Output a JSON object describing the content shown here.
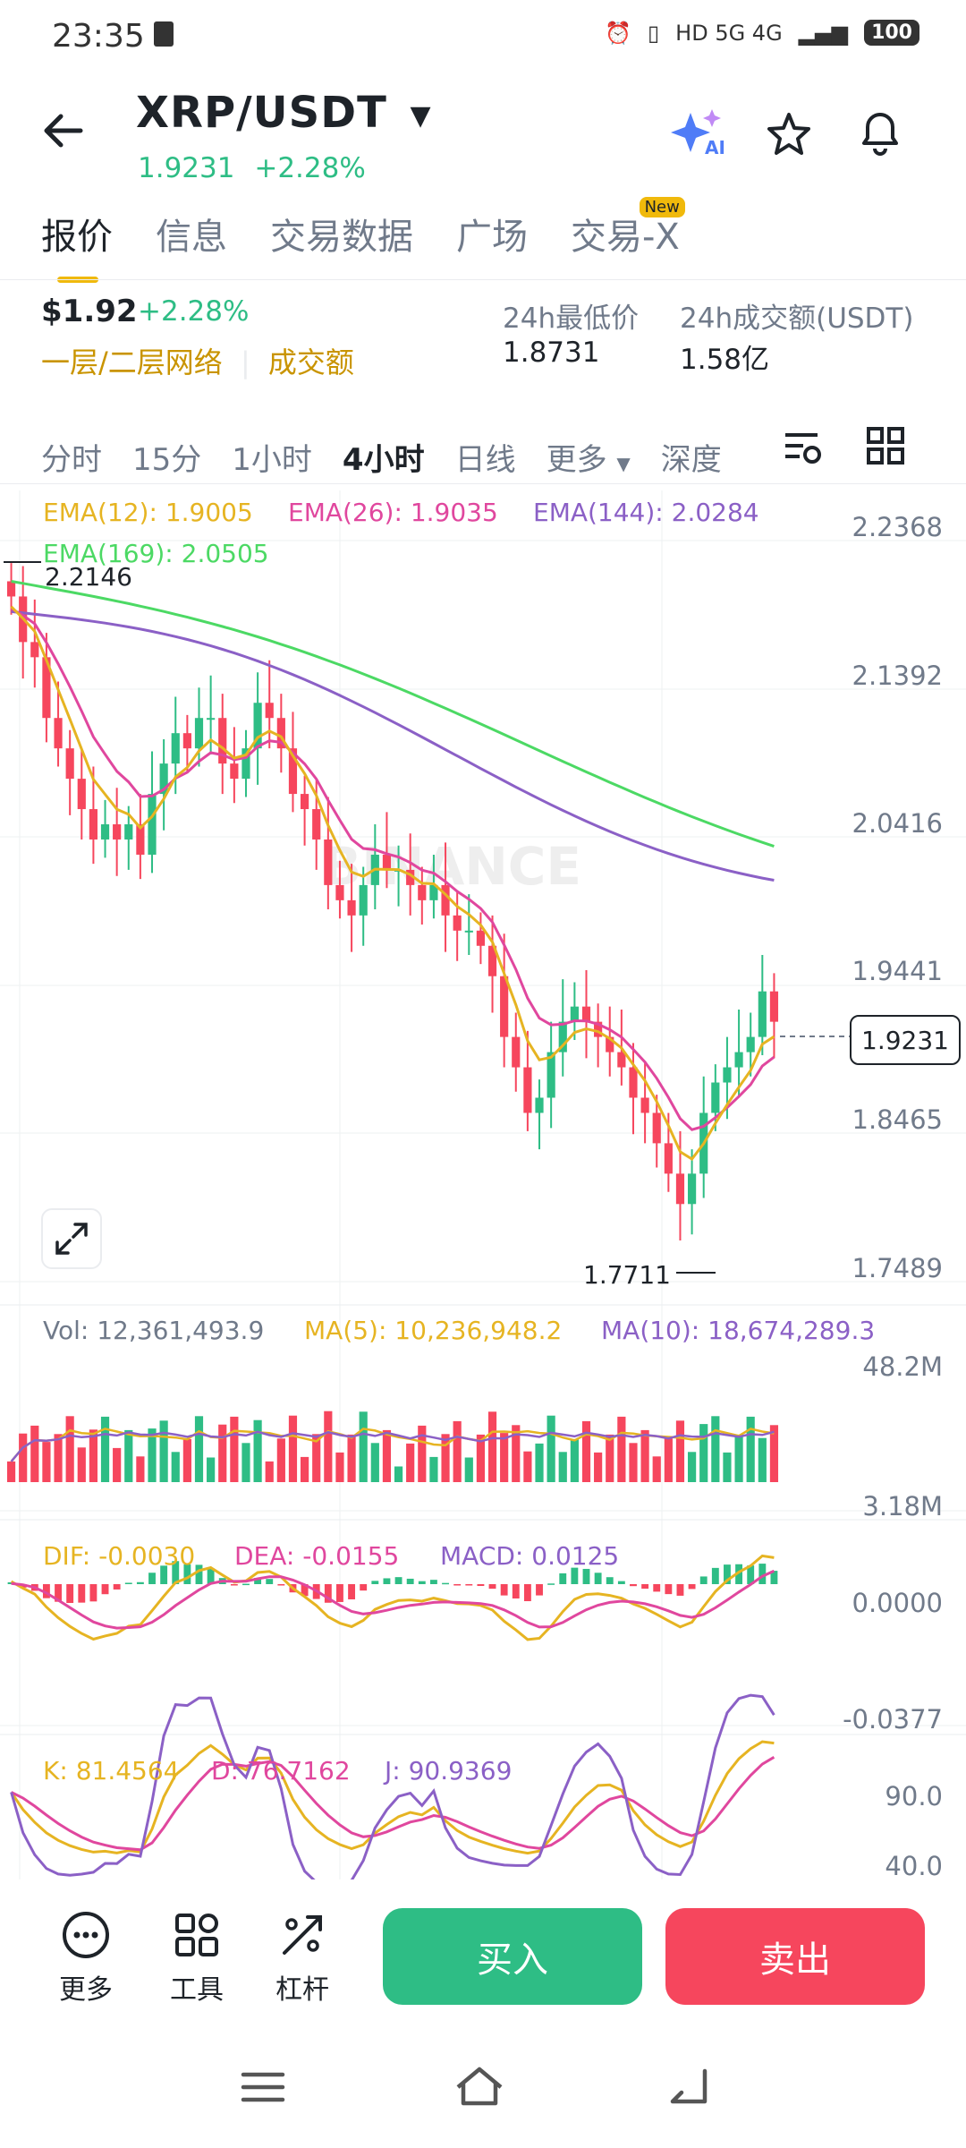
{
  "status_bar": {
    "time": "23:35",
    "indicators": "HD  5G  4G",
    "battery": "100"
  },
  "header": {
    "pair": "XRP/USDT",
    "price": "1.9231",
    "change": "+2.28%",
    "ai_label": "AI"
  },
  "tabs": [
    {
      "label": "报价"
    },
    {
      "label": "信息"
    },
    {
      "label": "交易数据"
    },
    {
      "label": "广场"
    },
    {
      "label": "交易-X",
      "badge": "New"
    }
  ],
  "summary": {
    "price_usd": "$1.92",
    "change": "+2.28%",
    "network": "一层/二层网络",
    "volume_link": "成交额",
    "low_label": "24h最低价",
    "low_value": "1.8731",
    "vol_label": "24h成交额(USDT)",
    "vol_value": "1.58亿"
  },
  "intervals": {
    "items": [
      "分时",
      "15分",
      "1小时",
      "4小时",
      "日线",
      "更多",
      "深度"
    ],
    "selected": "4小时"
  },
  "ema_labels": {
    "ema12": "EMA(12): 1.9005",
    "ema26": "EMA(26): 1.9035",
    "ema144": "EMA(144): 2.0284",
    "ema169": "EMA(169): 2.0505"
  },
  "price_axis": [
    "2.2368",
    "2.1392",
    "2.0416",
    "1.9441",
    "1.8465",
    "1.7489"
  ],
  "price_marks": {
    "high": "2.2146",
    "low": "1.7711",
    "current": "1.9231"
  },
  "watermark": "BINANCE",
  "volume": {
    "vol_label": "Vol: 12,361,493.9",
    "ma5_label": "MA(5): 10,236,948.2",
    "ma10_label": "MA(10): 18,674,289.3",
    "axis_top": "48.2M",
    "axis_bottom": "3.18M"
  },
  "macd": {
    "dif": "DIF: -0.0030",
    "dea": "DEA: -0.0155",
    "macd": "MACD: 0.0125",
    "axis_top": "0.0000",
    "axis_bottom": "-0.0377"
  },
  "kdj": {
    "k": "K: 81.4564",
    "d": "D: 76.7162",
    "j": "J: 90.9369",
    "axis_top": "90.0",
    "axis_bottom": "40.0"
  },
  "colors": {
    "up": "#2ebd85",
    "down": "#f6465d",
    "ema12": "#e6b422",
    "ema26": "#e0479e",
    "ema144": "#8b60c6",
    "ema169": "#4cd964",
    "brand": "#f0b90b"
  },
  "chart_data": {
    "type": "candlestick",
    "interval": "4小时",
    "close": [
      2.2,
      2.17,
      2.16,
      2.12,
      2.1,
      2.08,
      2.06,
      2.04,
      2.05,
      2.04,
      2.05,
      2.03,
      2.07,
      2.09,
      2.11,
      2.1,
      2.12,
      2.12,
      2.09,
      2.08,
      2.1,
      2.13,
      2.12,
      2.1,
      2.07,
      2.06,
      2.04,
      2.01,
      2.0,
      1.99,
      2.01,
      2.03,
      2.02,
      2.02,
      2.01,
      2.0,
      2.01,
      1.99,
      1.98,
      1.98,
      1.97,
      1.95,
      1.91,
      1.89,
      1.86,
      1.87,
      1.9,
      1.92,
      1.93,
      1.92,
      1.91,
      1.9,
      1.89,
      1.87,
      1.86,
      1.84,
      1.82,
      1.8,
      1.82,
      1.86,
      1.88,
      1.89,
      1.9,
      1.91,
      1.94,
      1.92
    ],
    "ema12_last": 1.9005,
    "ema26_last": 1.9035,
    "ema144_last": 2.0284,
    "ema169_last": 2.0505,
    "y_range": [
      1.7489,
      2.2368
    ]
  },
  "bottom_bar": {
    "more": "更多",
    "tools": "工具",
    "leverage": "杠杆",
    "buy": "买入",
    "sell": "卖出"
  }
}
